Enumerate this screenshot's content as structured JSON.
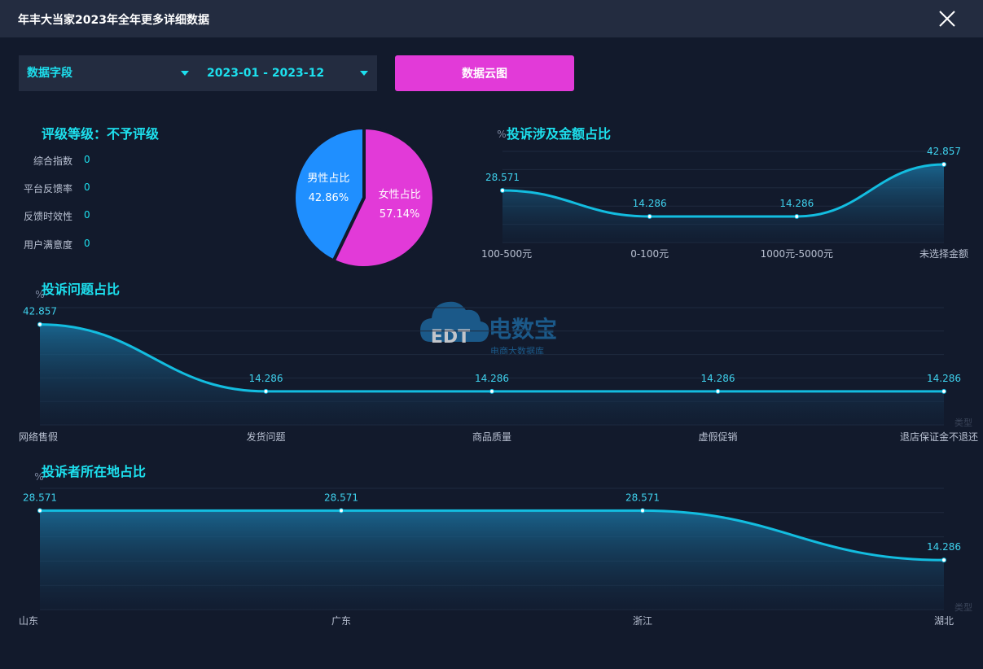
{
  "window": {
    "title": "年丰大当家2023年全年更多详细数据"
  },
  "filters": {
    "field_label": "数据字段",
    "date_range": "2023-01 - 2023-12",
    "cloud_button": "数据云图"
  },
  "rating": {
    "title": "评级等级：不予评级",
    "metrics": [
      {
        "label": "综合指数",
        "value": "0"
      },
      {
        "label": "平台反馈率",
        "value": "0"
      },
      {
        "label": "反馈时效性",
        "value": "0"
      },
      {
        "label": "用户满意度",
        "value": "0"
      }
    ]
  },
  "watermark": {
    "cn": "电数宝",
    "sub": "电商大数据库",
    "logo": "EDT"
  },
  "chart_data": [
    {
      "type": "pie",
      "slices": [
        {
          "label": "男性占比",
          "value": 42.86,
          "display": "42.86%",
          "color": "#1f8fff"
        },
        {
          "label": "女性占比",
          "value": 57.14,
          "display": "57.14%",
          "color": "#e23ad8"
        }
      ]
    },
    {
      "type": "area",
      "title": "投诉涉及金额占比",
      "ylabel": "%",
      "categories": [
        "100-500元",
        "0-100元",
        "1000元-5000元",
        "未选择金额"
      ],
      "values": [
        28.571,
        14.286,
        14.286,
        42.857
      ],
      "ylim": [
        0,
        50
      ]
    },
    {
      "type": "area",
      "title": "投诉问题占比",
      "ylabel": "%",
      "xlabel": "类型",
      "categories": [
        "网络售假",
        "发货问题",
        "商品质量",
        "虚假促销",
        "退店保证金不退还"
      ],
      "values": [
        42.857,
        14.286,
        14.286,
        14.286,
        14.286
      ],
      "ylim": [
        0,
        50
      ]
    },
    {
      "type": "area",
      "title": "投诉者所在地占比",
      "ylabel": "%",
      "xlabel": "类型",
      "categories": [
        "山东",
        "广东",
        "浙江",
        "湖北"
      ],
      "values": [
        28.571,
        28.571,
        28.571,
        14.286
      ],
      "ylim": [
        0,
        35
      ]
    }
  ]
}
